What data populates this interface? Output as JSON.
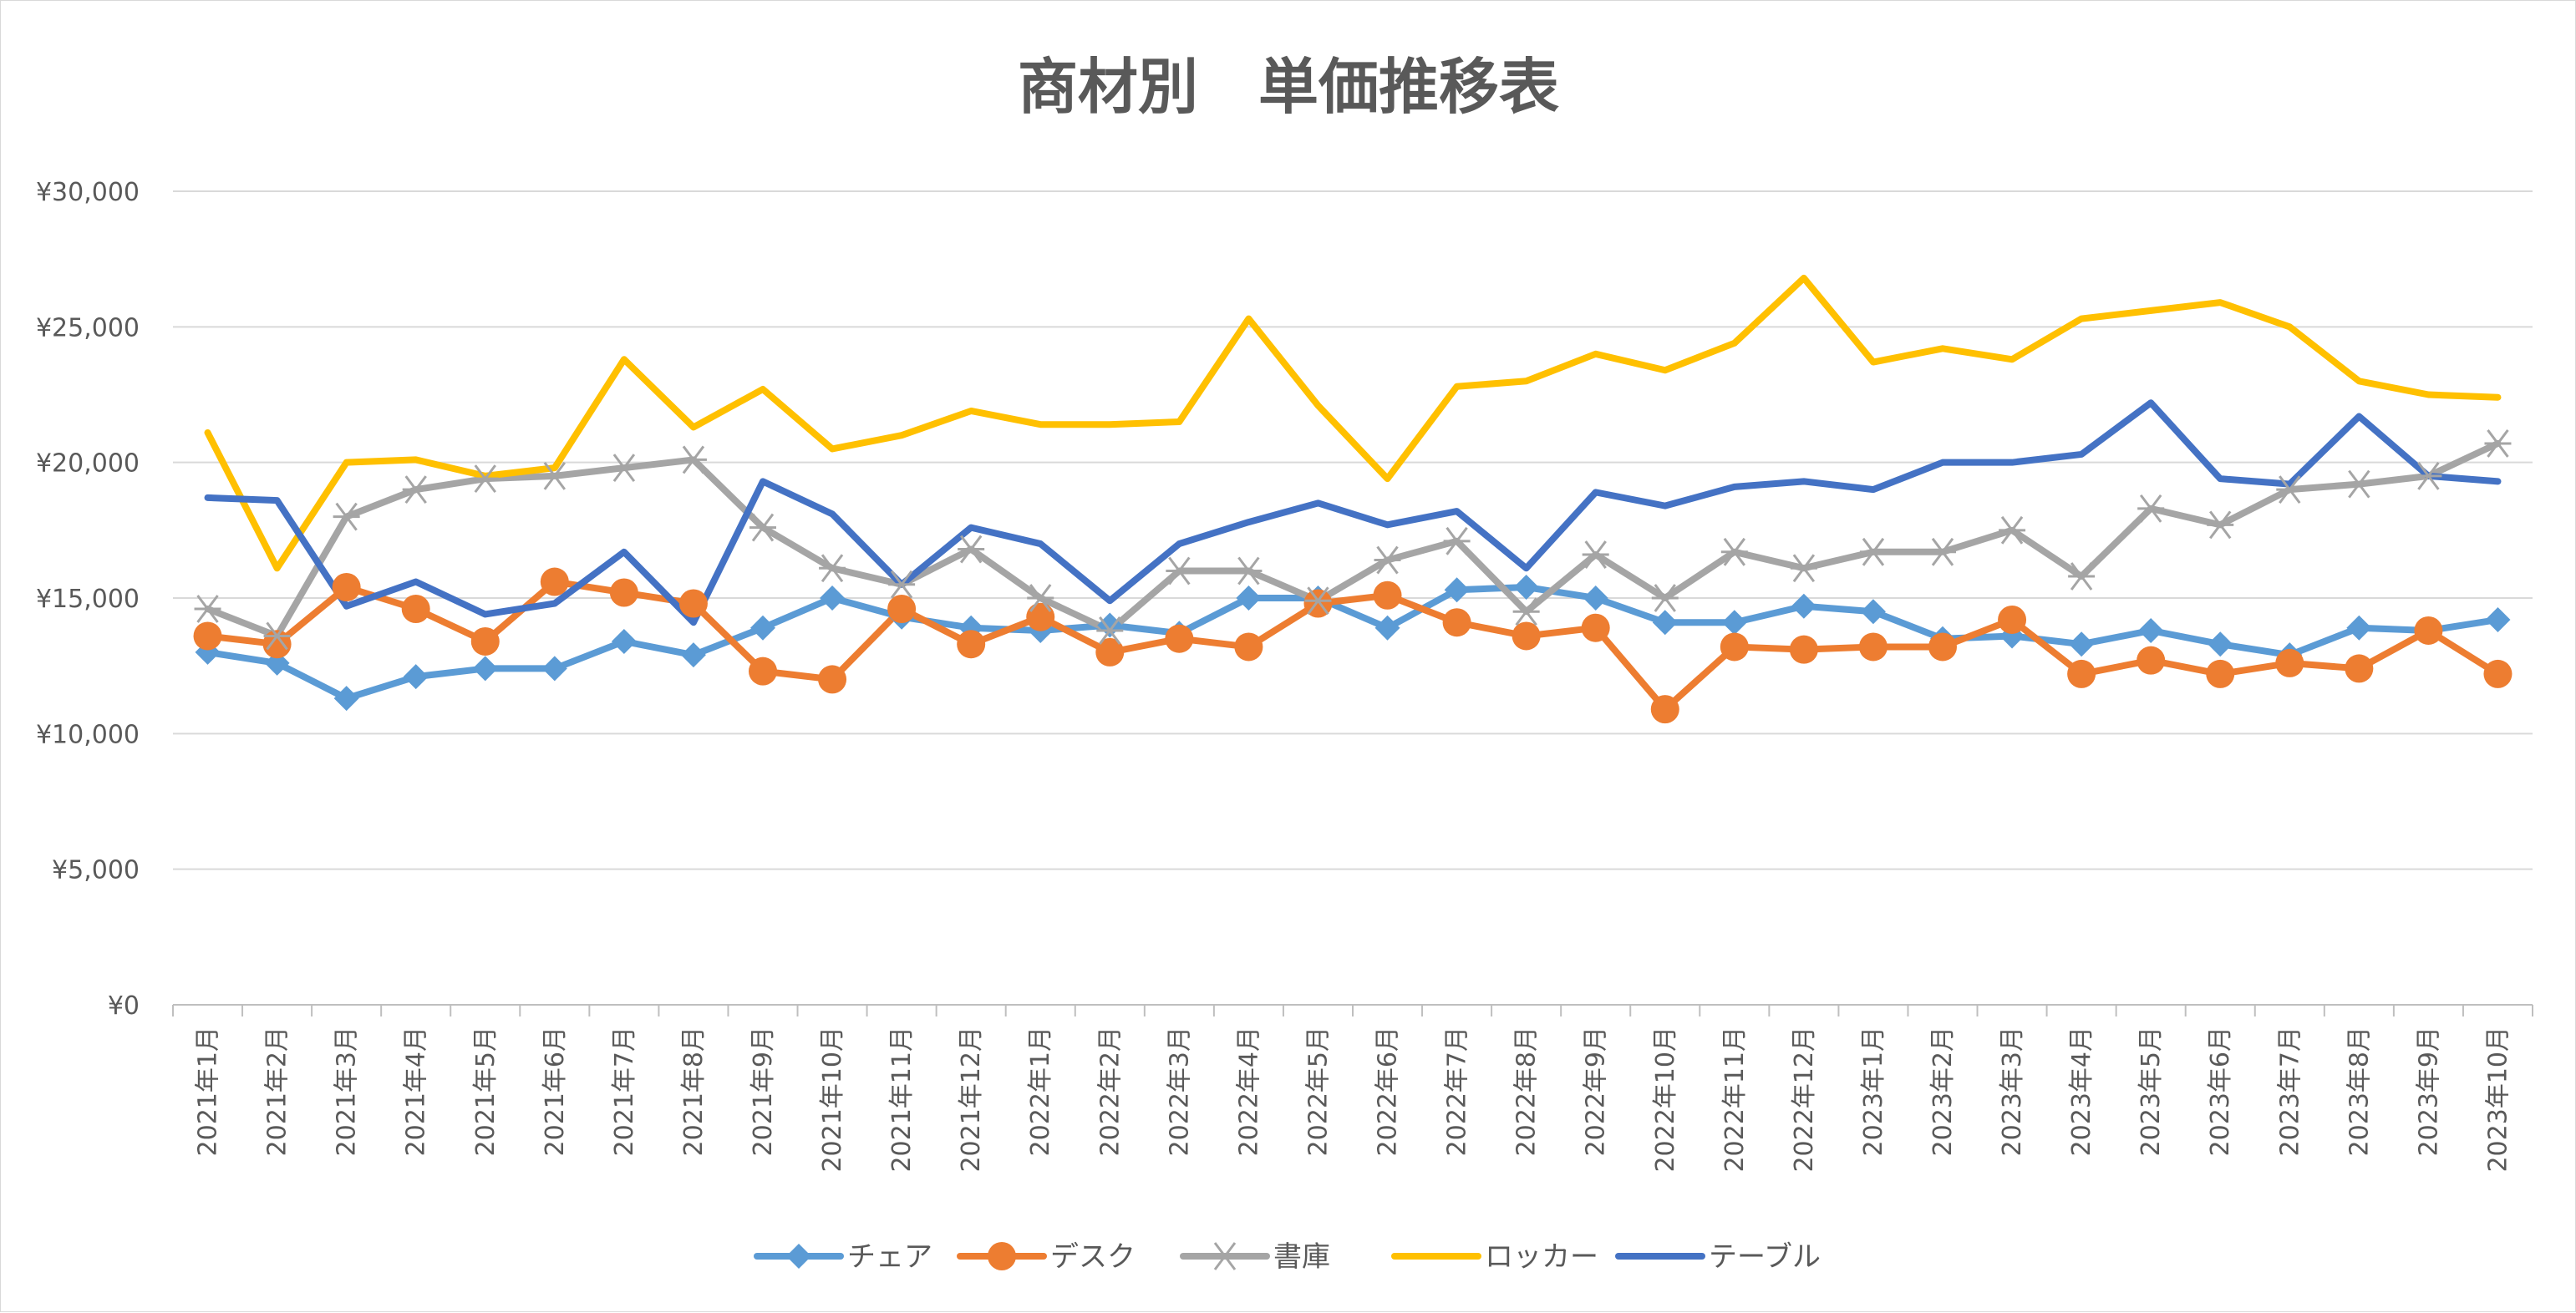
{
  "chart_data": {
    "type": "line",
    "title": "商材別　単価推移表",
    "xlabel": "",
    "ylabel": "",
    "ylim": [
      0,
      30000
    ],
    "yticks": [
      0,
      5000,
      10000,
      15000,
      20000,
      25000,
      30000
    ],
    "ytick_labels": [
      "¥0",
      "¥5,000",
      "¥10,000",
      "¥15,000",
      "¥20,000",
      "¥25,000",
      "¥30,000"
    ],
    "grid": true,
    "legend_position": "bottom",
    "categories": [
      "2021年1月",
      "2021年2月",
      "2021年3月",
      "2021年4月",
      "2021年5月",
      "2021年6月",
      "2021年7月",
      "2021年8月",
      "2021年9月",
      "2021年10月",
      "2021年11月",
      "2021年12月",
      "2022年1月",
      "2022年2月",
      "2022年3月",
      "2022年4月",
      "2022年5月",
      "2022年6月",
      "2022年7月",
      "2022年8月",
      "2022年9月",
      "2022年10月",
      "2022年11月",
      "2022年12月",
      "2023年1月",
      "2023年2月",
      "2023年3月",
      "2023年4月",
      "2023年5月",
      "2023年6月",
      "2023年7月",
      "2023年8月",
      "2023年9月",
      "2023年10月"
    ],
    "series": [
      {
        "name": "チェア",
        "color": "#5b9bd5",
        "marker": "diamond",
        "values": [
          13000,
          12600,
          11300,
          12100,
          12400,
          12400,
          13400,
          12900,
          13900,
          15000,
          14300,
          13900,
          13800,
          14000,
          13700,
          15000,
          15000,
          13900,
          15300,
          15400,
          15000,
          14100,
          14100,
          14700,
          14500,
          13500,
          13600,
          13300,
          13800,
          13300,
          12900,
          13900,
          13800,
          14200
        ]
      },
      {
        "name": "デスク",
        "color": "#ed7d31",
        "marker": "circle",
        "values": [
          13600,
          13300,
          15400,
          14600,
          13400,
          15600,
          15200,
          14800,
          12300,
          12000,
          14600,
          13300,
          14300,
          13000,
          13500,
          13200,
          14800,
          15100,
          14100,
          13600,
          13900,
          10900,
          13200,
          13100,
          13200,
          13200,
          14200,
          12200,
          12700,
          12200,
          12600,
          12400,
          13800,
          12200
        ]
      },
      {
        "name": "書庫",
        "color": "#a5a5a5",
        "marker": "star",
        "values": [
          14600,
          13600,
          18000,
          19000,
          19400,
          19500,
          19800,
          20100,
          17600,
          16100,
          15500,
          16800,
          15000,
          13800,
          16000,
          16000,
          14900,
          16400,
          17100,
          14500,
          16600,
          15000,
          16700,
          16100,
          16700,
          16700,
          17500,
          15800,
          18300,
          17700,
          19000,
          19200,
          19500,
          20700
        ]
      },
      {
        "name": "ロッカー",
        "color": "#ffc000",
        "marker": "none",
        "values": [
          21100,
          16100,
          20000,
          20100,
          19500,
          19800,
          23800,
          21300,
          22700,
          20500,
          21000,
          21900,
          21400,
          21400,
          21500,
          25300,
          22100,
          19400,
          22800,
          23000,
          24000,
          23400,
          24400,
          26800,
          23700,
          24200,
          23800,
          25300,
          25600,
          25900,
          25000,
          23000,
          22500,
          22400
        ]
      },
      {
        "name": "テーブル",
        "color": "#4472c4",
        "marker": "none",
        "values": [
          18700,
          18600,
          14700,
          15600,
          14400,
          14800,
          16700,
          14100,
          19300,
          18100,
          15500,
          17600,
          17000,
          14900,
          17000,
          17800,
          18500,
          17700,
          18200,
          16100,
          18900,
          18400,
          19100,
          19300,
          19000,
          20000,
          20000,
          20300,
          22200,
          19400,
          19200,
          21700,
          19500,
          19300
        ]
      }
    ]
  }
}
